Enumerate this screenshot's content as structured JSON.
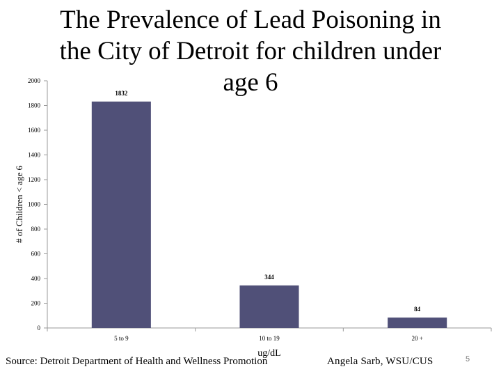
{
  "slide": {
    "source": "Source: Detroit Department of Health and Wellness Promotion",
    "author": "Angela Sarb, WSU/CUS",
    "page_number": "5"
  },
  "chart_data": {
    "type": "bar",
    "title": "The Prevalence of Lead Poisoning in the City of Detroit for children under age 6",
    "title_lines": [
      "The Prevalence of Lead Poisoning in",
      "the City of Detroit for children under",
      "age 6"
    ],
    "categories": [
      "5 to 9",
      "10 to 19",
      "20 +"
    ],
    "values": [
      1832,
      344,
      84
    ],
    "data_labels": [
      "1832",
      "344",
      "84"
    ],
    "xlabel": "ug/dL",
    "ylabel": "# of Children < age 6",
    "ylim": [
      0,
      2000
    ],
    "yticks": [
      0,
      200,
      400,
      600,
      800,
      1000,
      1200,
      1400,
      1600,
      1800,
      2000
    ],
    "bar_color": "#505078",
    "grid": false,
    "legend": "none"
  }
}
